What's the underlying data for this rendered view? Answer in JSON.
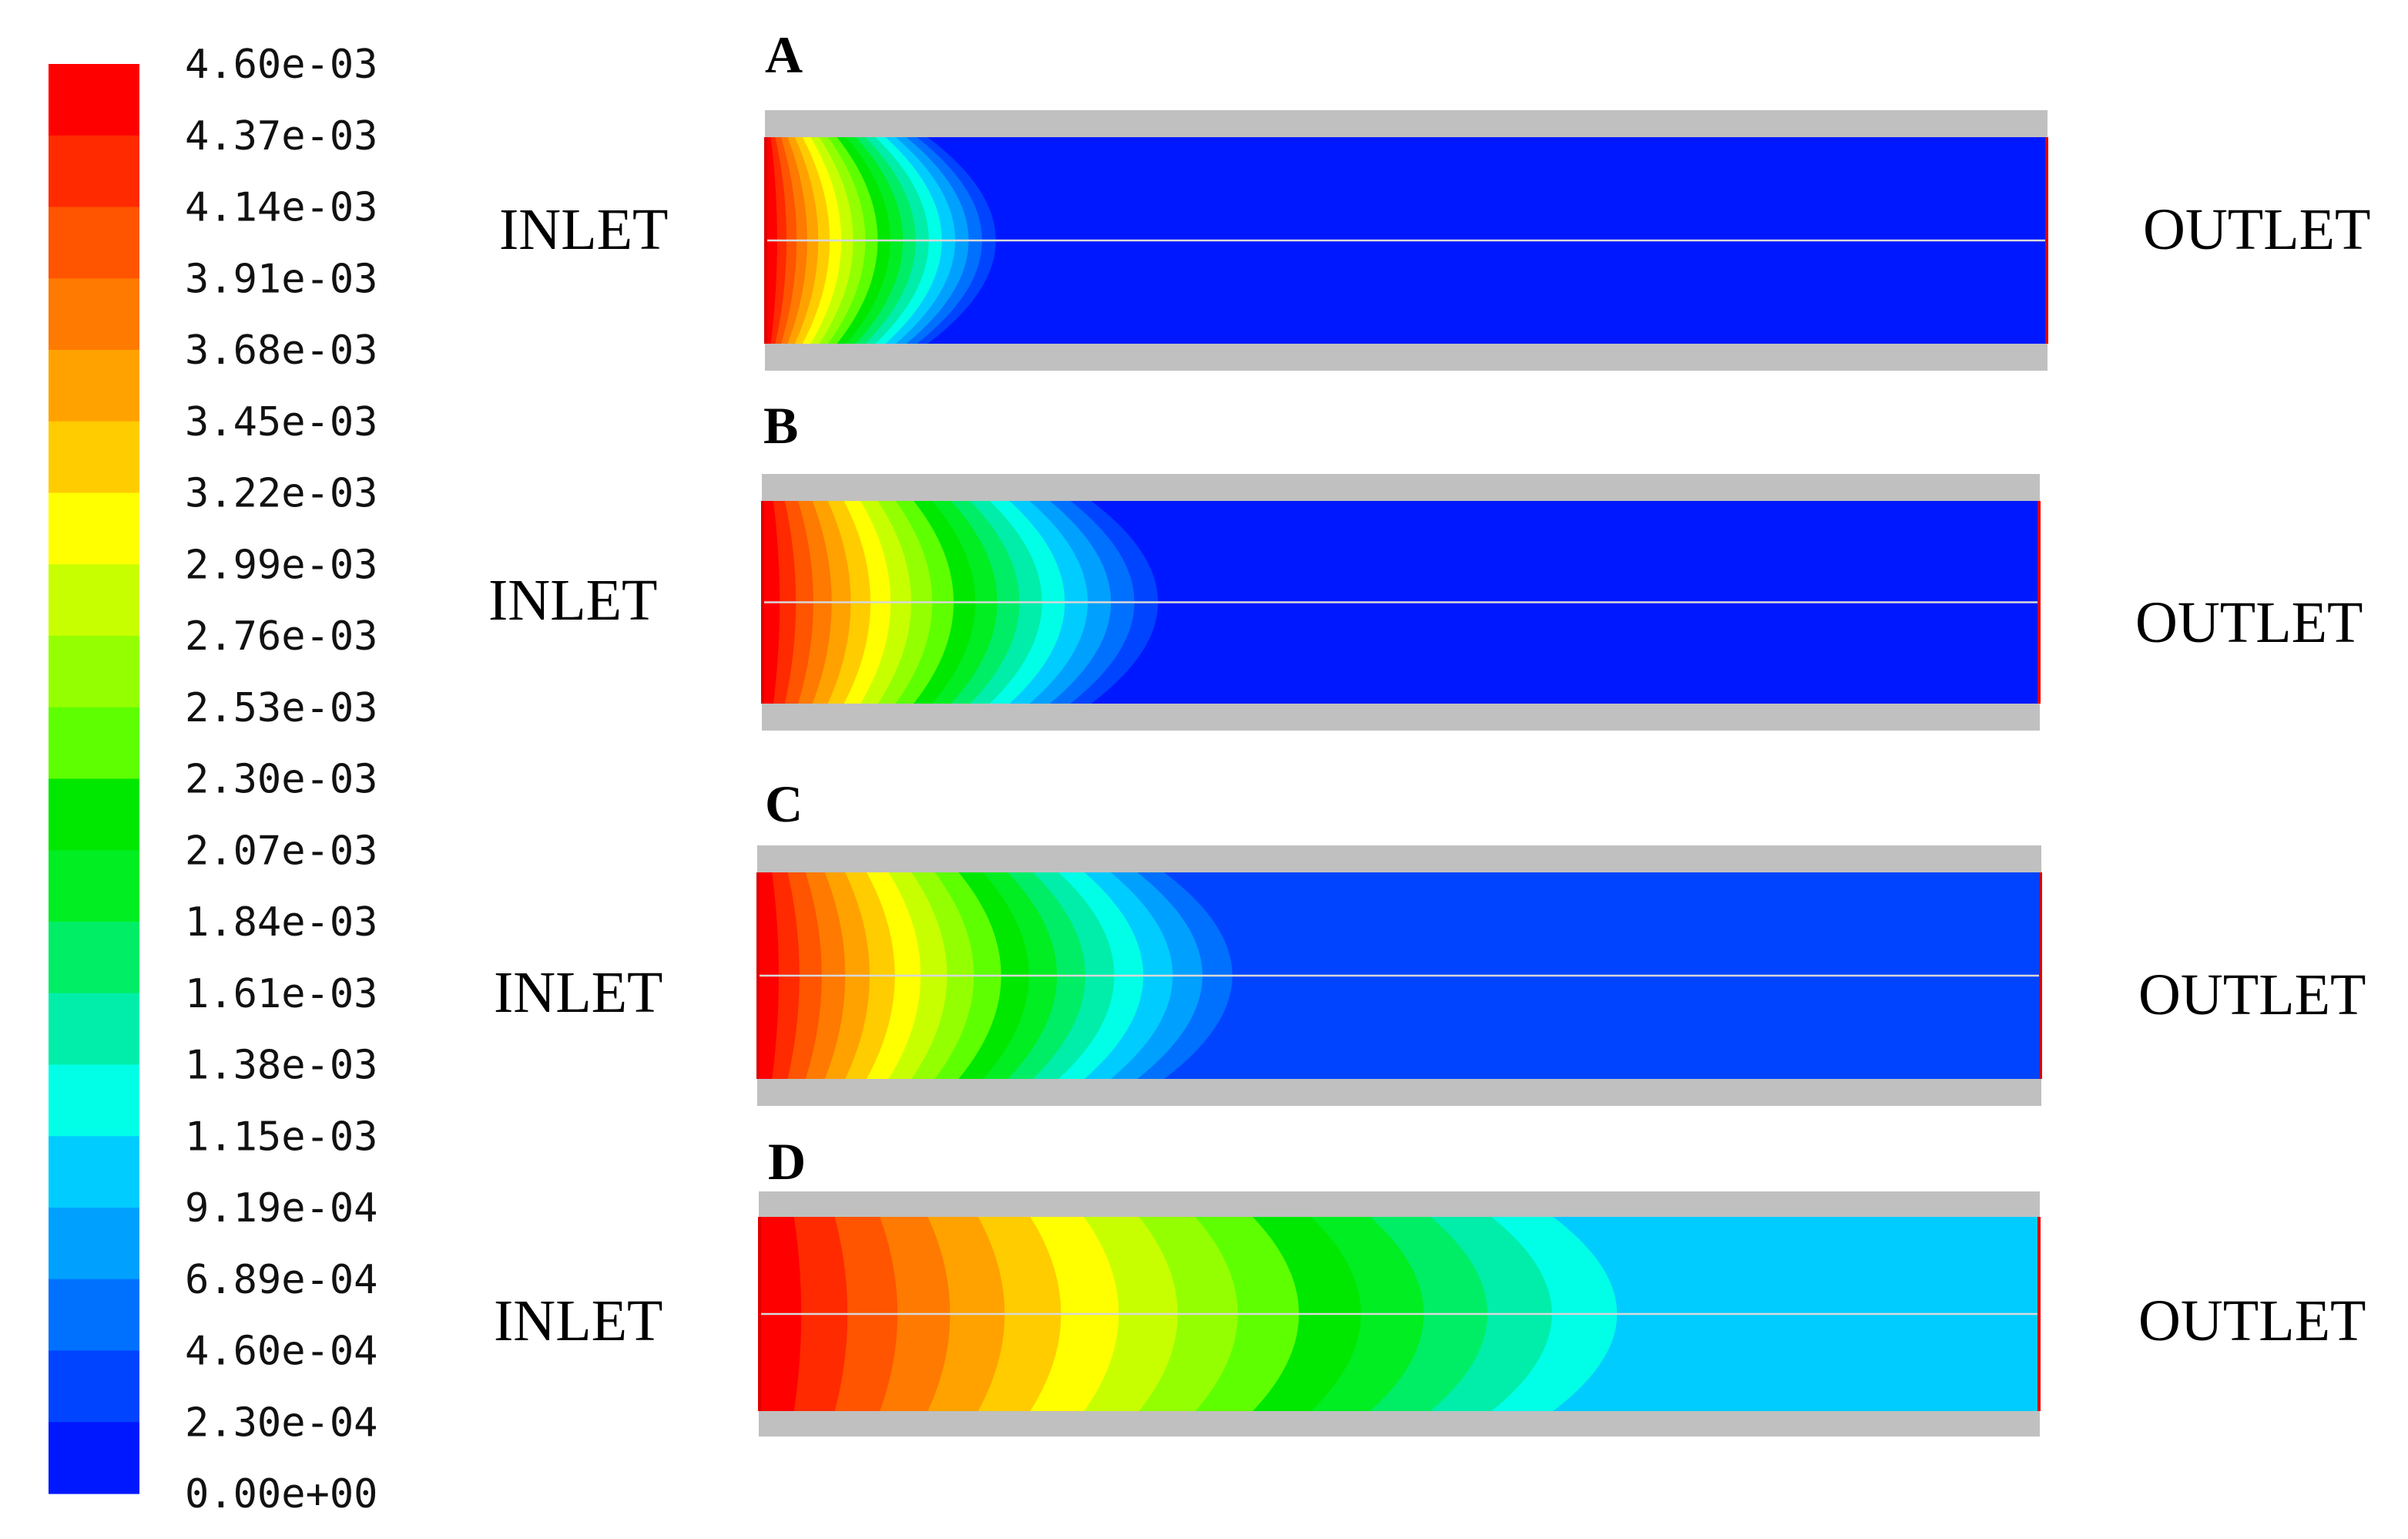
{
  "colorbar": {
    "ticks": [
      "4.60e-03",
      "4.37e-03",
      "4.14e-03",
      "3.91e-03",
      "3.68e-03",
      "3.45e-03",
      "3.22e-03",
      "2.99e-03",
      "2.76e-03",
      "2.53e-03",
      "2.30e-03",
      "2.07e-03",
      "1.84e-03",
      "1.61e-03",
      "1.38e-03",
      "1.15e-03",
      "9.19e-04",
      "6.89e-04",
      "4.60e-04",
      "2.30e-04",
      "0.00e+00"
    ],
    "colors": [
      "#ff0000",
      "#ff2a00",
      "#ff5400",
      "#ff7a00",
      "#ffa200",
      "#ffcc00",
      "#ffff00",
      "#c8ff00",
      "#94ff00",
      "#5eff00",
      "#00e800",
      "#00ee22",
      "#00ee66",
      "#00eeaa",
      "#00ffe6",
      "#00ccff",
      "#00a0ff",
      "#0070ff",
      "#0044ff",
      "#0018ff"
    ]
  },
  "panels": [
    {
      "label": "A",
      "inlet": "INLET",
      "outlet": "OUTLET",
      "contour_extent_fraction": 0.18,
      "background_color": "#0018ff"
    },
    {
      "label": "B",
      "inlet": "INLET",
      "outlet": "OUTLET",
      "contour_extent_fraction": 0.31,
      "background_color": "#0018ff"
    },
    {
      "label": "C",
      "inlet": "INLET",
      "outlet": "OUTLET",
      "contour_extent_fraction": 0.37,
      "background_color": "#0044ff"
    },
    {
      "label": "D",
      "inlet": "INLET",
      "outlet": "OUTLET",
      "contour_extent_fraction": 0.67,
      "background_color": "#00ccff"
    }
  ]
}
